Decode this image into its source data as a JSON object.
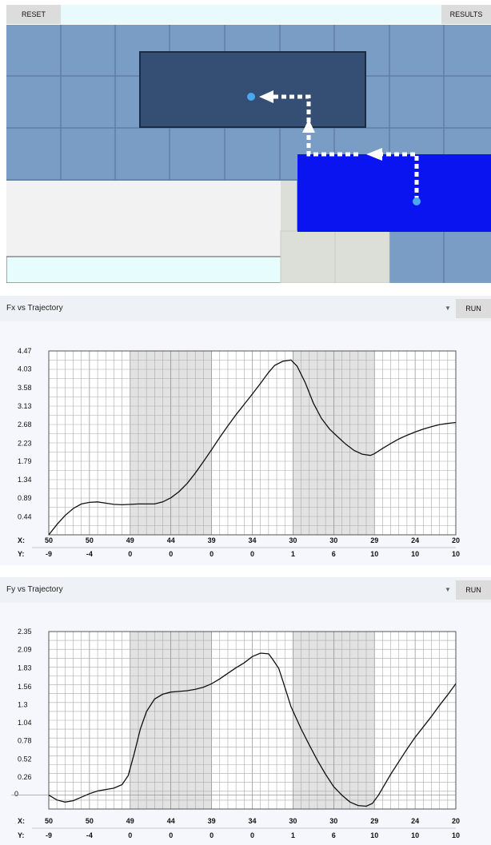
{
  "toolbar": {
    "reset_label": "RESET",
    "results_label": "RESULTS"
  },
  "colors": {
    "grid_blue": "#7a9dc6",
    "dark_block": "#344f73",
    "moving_block": "#0a14f0",
    "shade": "#e2e2e2"
  },
  "icons": {
    "path_arrow": "dotted-arrow-icon",
    "point": "circle-dot-icon"
  },
  "charts": [
    {
      "title": "Fx vs Trajectory",
      "run_label": "RUN",
      "x_prefix": "X:",
      "y_prefix": "Y:"
    },
    {
      "title": "Fy vs Trajectory",
      "run_label": "RUN",
      "x_prefix": "X:",
      "y_prefix": "Y:"
    }
  ],
  "chart_data": [
    {
      "type": "line",
      "ylim": [
        0,
        4.47
      ],
      "yticks": [
        "4.47",
        "4.03",
        "3.58",
        "3.13",
        "2.68",
        "2.23",
        "1.79",
        "1.34",
        "0.89",
        "0.44"
      ],
      "ytick_values": [
        4.47,
        4.03,
        3.58,
        3.13,
        2.68,
        2.23,
        1.79,
        1.34,
        0.89,
        0.44
      ],
      "x_ticks": [
        "50",
        "50",
        "49",
        "44",
        "39",
        "34",
        "30",
        "30",
        "29",
        "24",
        "20"
      ],
      "y_ticks": [
        "-9",
        "-4",
        "0",
        "0",
        "0",
        "0",
        "1",
        "6",
        "10",
        "10",
        "10"
      ],
      "shaded_bands": [
        [
          2,
          4
        ],
        [
          6,
          8
        ]
      ],
      "series": [
        {
          "t": [
            0,
            0.2,
            0.4,
            0.6,
            0.8,
            1.0,
            1.2,
            1.4,
            1.6,
            1.8,
            2.0,
            2.2,
            2.4,
            2.6,
            2.8,
            3.0,
            3.2,
            3.4,
            3.6,
            3.8,
            4.0,
            4.2,
            4.4,
            4.6,
            4.8,
            5.0,
            5.2,
            5.4,
            5.55,
            5.75,
            5.95,
            6.1,
            6.3,
            6.5,
            6.7,
            6.9,
            7.1,
            7.3,
            7.5,
            7.7,
            7.9,
            8.0,
            8.2,
            8.4,
            8.6,
            8.8,
            9.0,
            9.2,
            9.4,
            9.6,
            9.8,
            10.0
          ],
          "values": [
            0.0,
            0.25,
            0.47,
            0.64,
            0.75,
            0.79,
            0.8,
            0.77,
            0.74,
            0.73,
            0.74,
            0.75,
            0.75,
            0.75,
            0.8,
            0.9,
            1.05,
            1.25,
            1.5,
            1.78,
            2.07,
            2.37,
            2.65,
            2.92,
            3.17,
            3.42,
            3.68,
            3.95,
            4.12,
            4.22,
            4.25,
            4.1,
            3.7,
            3.2,
            2.83,
            2.57,
            2.38,
            2.2,
            2.05,
            1.96,
            1.93,
            1.97,
            2.1,
            2.22,
            2.33,
            2.42,
            2.5,
            2.57,
            2.63,
            2.68,
            2.71,
            2.73
          ]
        }
      ]
    },
    {
      "type": "line",
      "ylim": [
        -0.2,
        2.35
      ],
      "yticks": [
        "2.35",
        "2.09",
        "1.83",
        "1.56",
        "1.3",
        "1.04",
        "0.78",
        "0.52",
        "0.26",
        "0"
      ],
      "ytick_values": [
        2.35,
        2.09,
        1.83,
        1.56,
        1.3,
        1.04,
        0.78,
        0.52,
        0.26,
        0
      ],
      "x_ticks": [
        "50",
        "50",
        "49",
        "44",
        "39",
        "34",
        "30",
        "30",
        "29",
        "24",
        "20"
      ],
      "y_ticks": [
        "-9",
        "-4",
        "0",
        "0",
        "0",
        "0",
        "1",
        "6",
        "10",
        "10",
        "10"
      ],
      "shaded_bands": [
        [
          2,
          4
        ],
        [
          6,
          8
        ]
      ],
      "series": [
        {
          "t": [
            0,
            0.2,
            0.4,
            0.6,
            0.8,
            1.0,
            1.2,
            1.4,
            1.6,
            1.8,
            1.95,
            2.1,
            2.25,
            2.4,
            2.6,
            2.8,
            3.0,
            3.2,
            3.4,
            3.6,
            3.8,
            4.0,
            4.2,
            4.4,
            4.6,
            4.8,
            5.0,
            5.2,
            5.4,
            5.5,
            5.65,
            5.8,
            5.95,
            6.2,
            6.4,
            6.6,
            6.8,
            7.0,
            7.2,
            7.4,
            7.6,
            7.8,
            7.95,
            8.1,
            8.2,
            8.4,
            8.6,
            8.8,
            9.0,
            9.2,
            9.4,
            9.6,
            9.8,
            10.0
          ],
          "values": [
            0.0,
            -0.07,
            -0.1,
            -0.08,
            -0.03,
            0.02,
            0.06,
            0.08,
            0.1,
            0.15,
            0.28,
            0.6,
            0.95,
            1.2,
            1.38,
            1.45,
            1.48,
            1.49,
            1.5,
            1.52,
            1.55,
            1.6,
            1.67,
            1.75,
            1.83,
            1.9,
            1.99,
            2.04,
            2.03,
            1.95,
            1.82,
            1.55,
            1.27,
            0.95,
            0.72,
            0.5,
            0.3,
            0.12,
            0.0,
            -0.1,
            -0.15,
            -0.16,
            -0.12,
            0.0,
            0.1,
            0.3,
            0.48,
            0.66,
            0.83,
            0.98,
            1.13,
            1.29,
            1.44,
            1.6
          ]
        }
      ]
    }
  ]
}
